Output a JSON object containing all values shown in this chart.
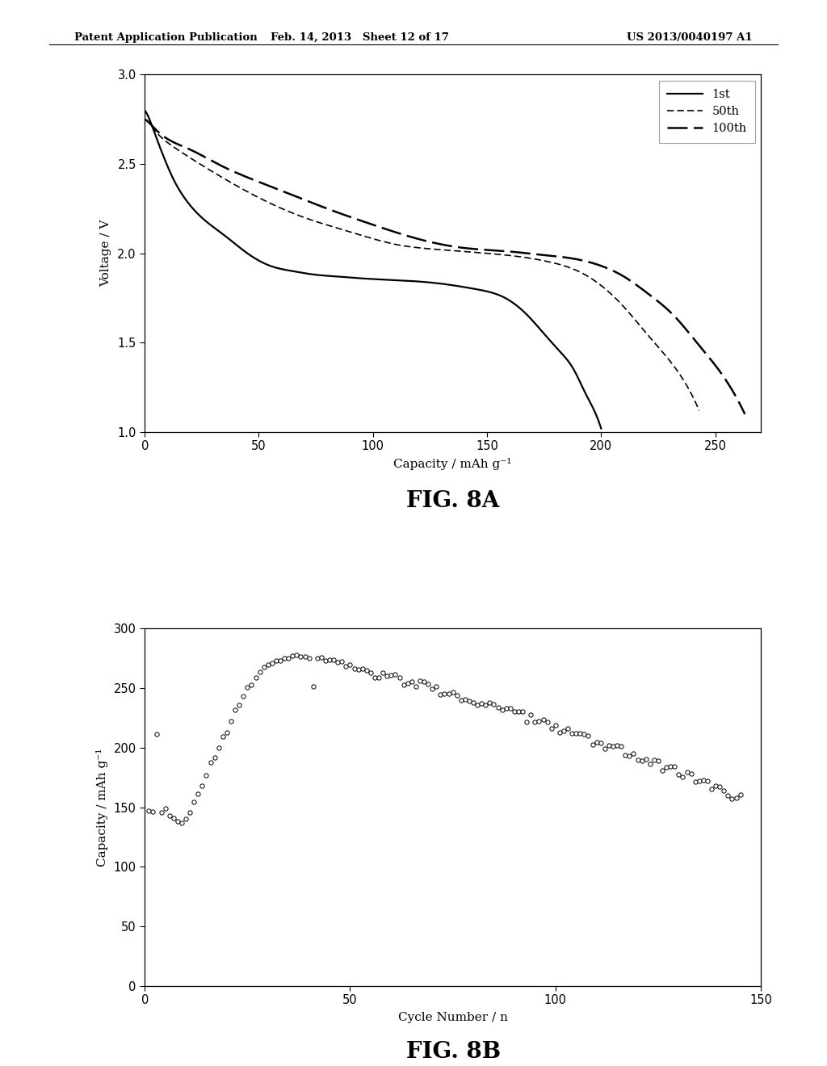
{
  "fig8a": {
    "xlabel": "Capacity / mAh g⁻¹",
    "ylabel": "Voltage / V",
    "xlim": [
      0,
      270
    ],
    "ylim": [
      1.0,
      3.0
    ],
    "xticks": [
      0,
      50,
      100,
      150,
      200,
      250
    ],
    "yticks": [
      1.0,
      1.5,
      2.0,
      2.5,
      3.0
    ],
    "fig_label": "FIG. 8A"
  },
  "fig8b": {
    "xlabel": "Cycle Number / n",
    "ylabel": "Capacity / mAh g⁻¹",
    "xlim": [
      0,
      150
    ],
    "ylim": [
      0,
      300
    ],
    "xticks": [
      0,
      50,
      100,
      150
    ],
    "yticks": [
      0,
      50,
      100,
      150,
      200,
      250,
      300
    ],
    "fig_label": "FIG. 8B"
  },
  "header_left": "Patent Application Publication",
  "header_center": "Feb. 14, 2013   Sheet 12 of 17",
  "header_right": "US 2013/0040197 A1"
}
